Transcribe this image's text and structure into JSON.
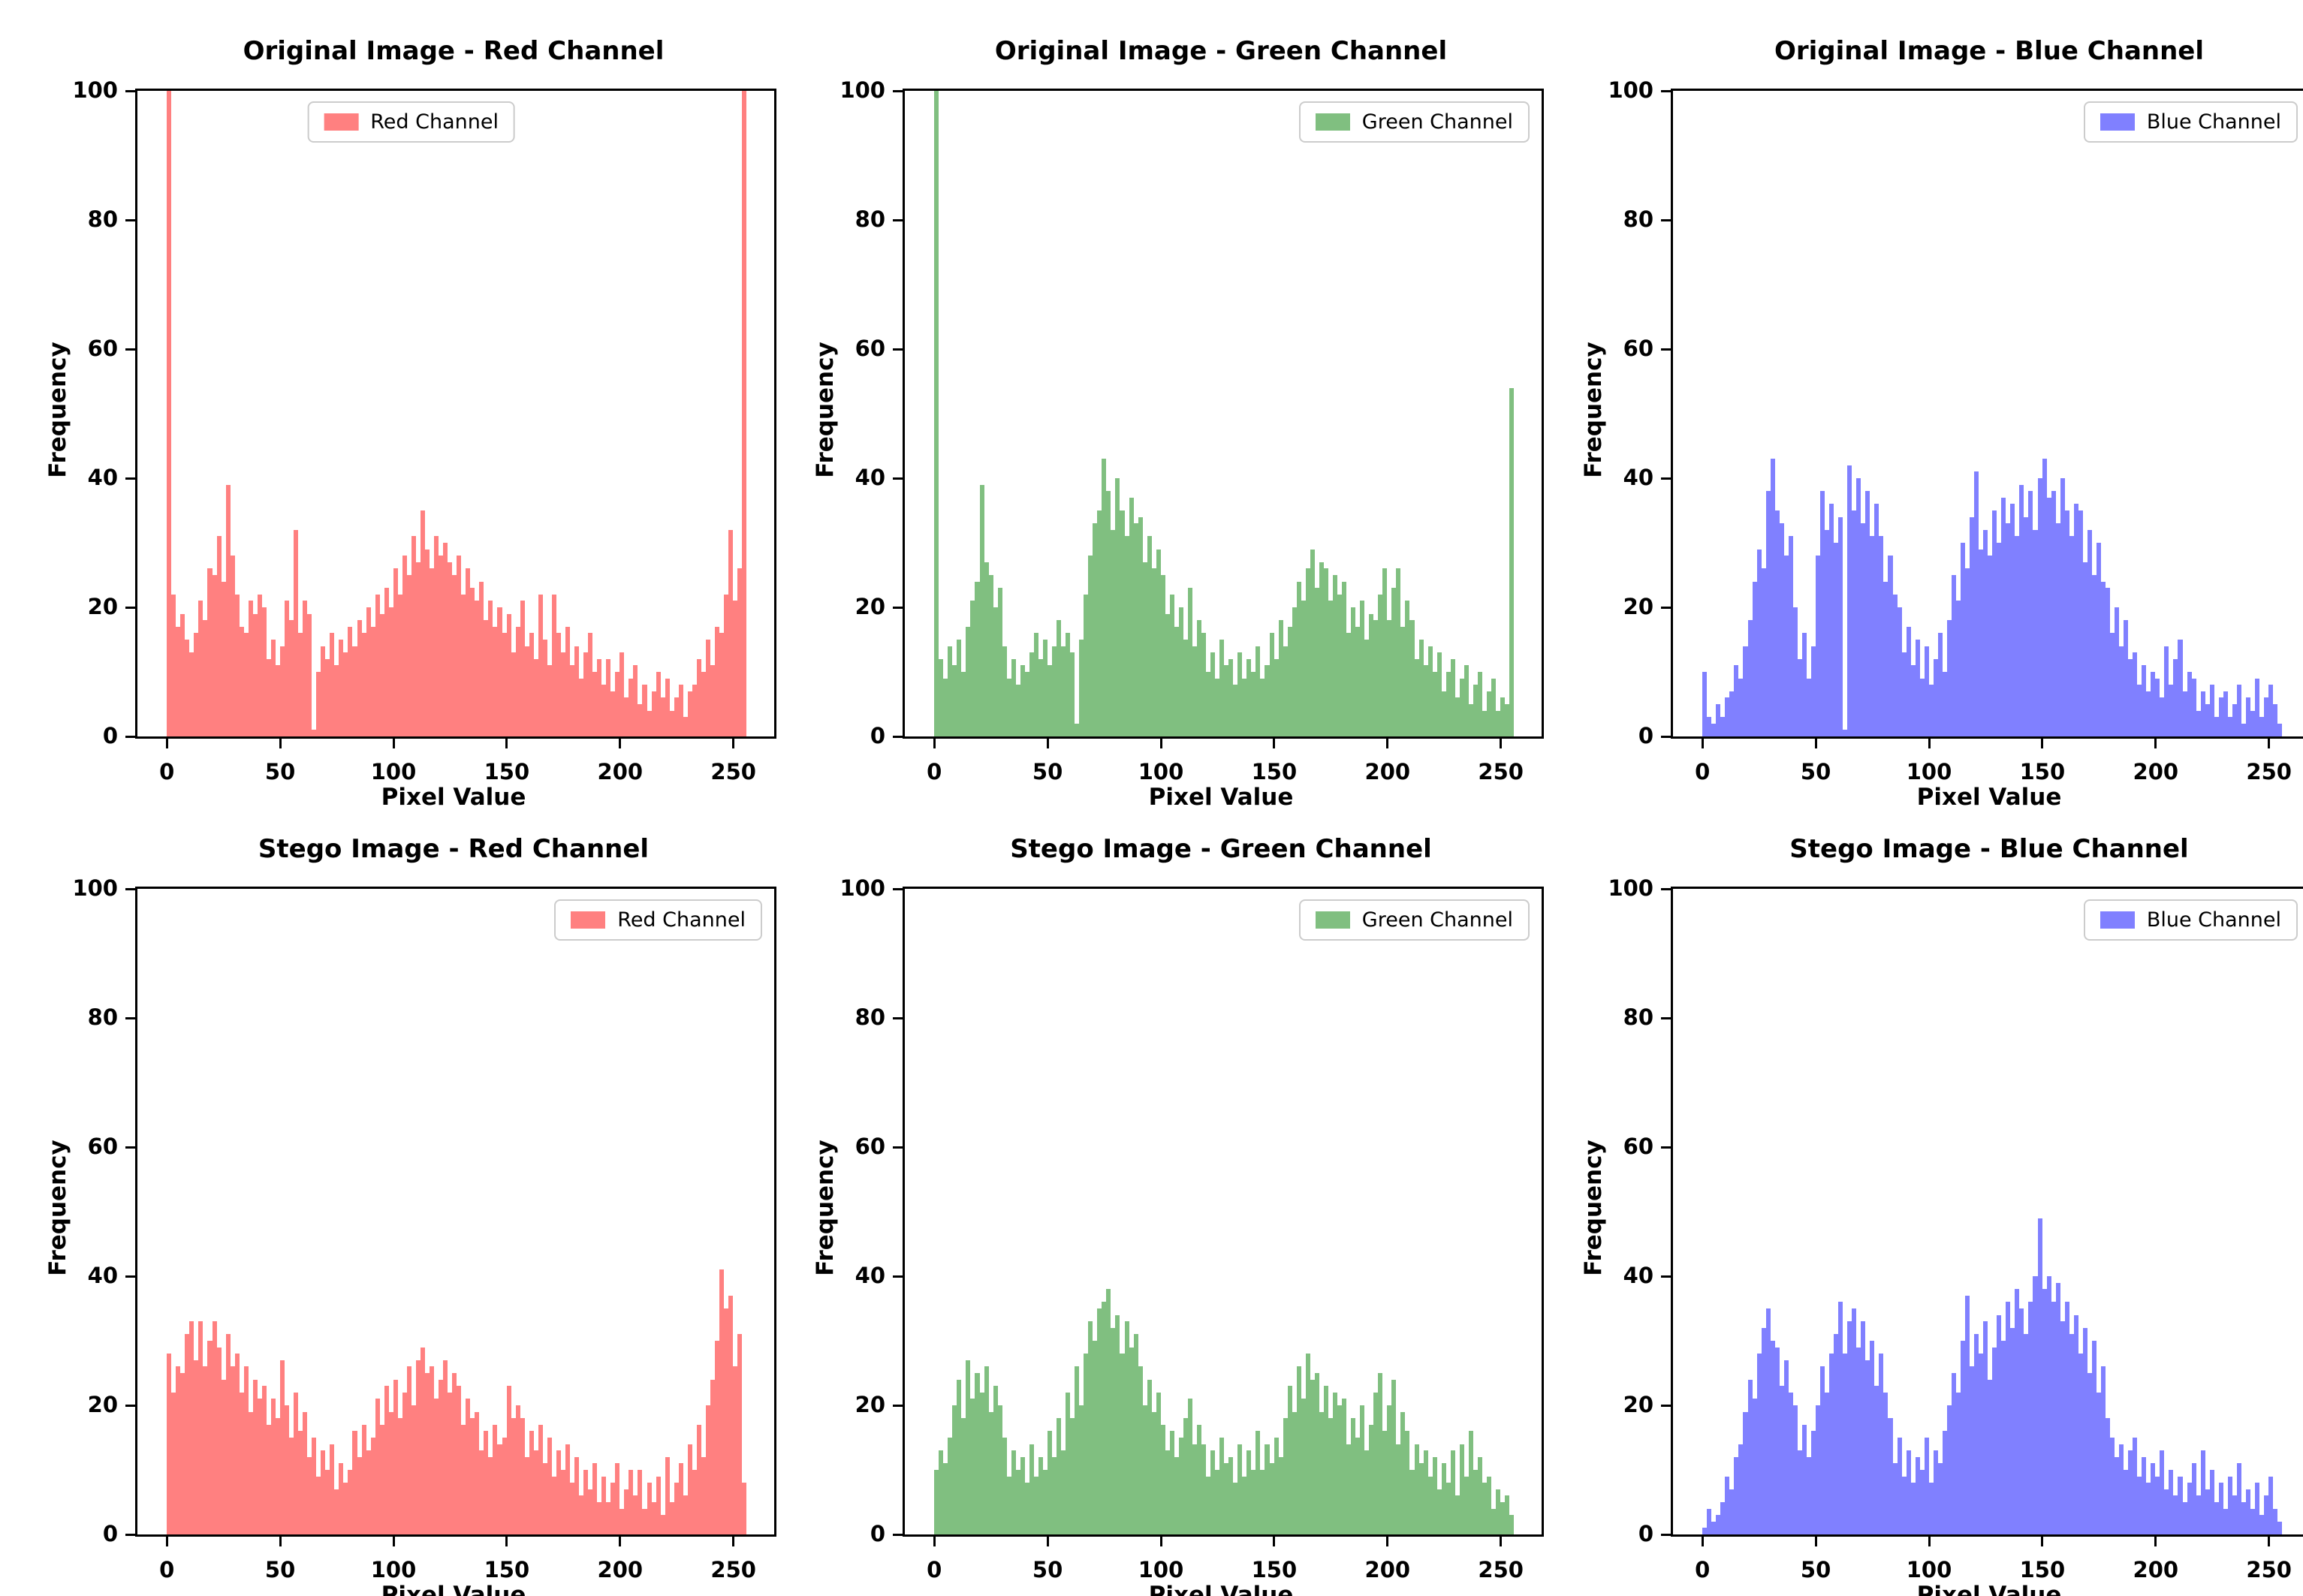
{
  "figure": {
    "background": "#ffffff"
  },
  "chart_data": [
    {
      "type": "bar",
      "subtype": "histogram",
      "title": "Original Image - Red Channel",
      "legend_label": "Red Channel",
      "legend_position": "upper-center",
      "color": "#ff8080",
      "xlabel": "Pixel Value",
      "ylabel": "Frequency",
      "x_ticks": [
        0,
        50,
        100,
        150,
        200,
        250
      ],
      "y_ticks": [
        0,
        20,
        40,
        60,
        80,
        100
      ],
      "xlim": [
        -13,
        268
      ],
      "ylim": [
        0,
        100
      ],
      "bin_start": 0,
      "bin_width": 2,
      "clipped_spikes_at": [
        0,
        255
      ],
      "values": [
        115,
        22,
        17,
        19,
        15,
        13,
        16,
        21,
        18,
        26,
        25,
        31,
        24,
        39,
        28,
        22,
        17,
        16,
        21,
        19,
        22,
        20,
        12,
        15,
        11,
        14,
        21,
        18,
        32,
        16,
        21,
        19,
        1,
        10,
        14,
        12,
        16,
        11,
        15,
        13,
        17,
        14,
        18,
        16,
        20,
        17,
        22,
        19,
        23,
        20,
        26,
        22,
        28,
        25,
        31,
        27,
        35,
        29,
        26,
        31,
        28,
        30,
        27,
        25,
        28,
        22,
        26,
        23,
        21,
        24,
        18,
        21,
        17,
        20,
        16,
        19,
        13,
        17,
        21,
        14,
        16,
        12,
        22,
        15,
        11,
        22,
        16,
        13,
        17,
        11,
        14,
        9,
        13,
        16,
        10,
        12,
        8,
        12,
        7,
        10,
        13,
        6,
        9,
        11,
        5,
        8,
        4,
        7,
        10,
        6,
        9,
        4,
        6,
        8,
        3,
        7,
        8,
        12,
        10,
        15,
        11,
        17,
        16,
        22,
        32,
        21,
        26,
        115
      ]
    },
    {
      "type": "bar",
      "subtype": "histogram",
      "title": "Original Image - Green Channel",
      "legend_label": "Green Channel",
      "legend_position": "upper-right",
      "color": "#80bf80",
      "xlabel": "Pixel Value",
      "ylabel": "Frequency",
      "x_ticks": [
        0,
        50,
        100,
        150,
        200,
        250
      ],
      "y_ticks": [
        0,
        20,
        40,
        60,
        80,
        100
      ],
      "xlim": [
        -13,
        268
      ],
      "ylim": [
        0,
        100
      ],
      "bin_start": 0,
      "bin_width": 2,
      "clipped_spikes_at": [
        0
      ],
      "values": [
        115,
        12,
        9,
        14,
        11,
        15,
        10,
        17,
        21,
        24,
        39,
        27,
        25,
        20,
        23,
        14,
        9,
        12,
        8,
        11,
        10,
        13,
        16,
        12,
        15,
        11,
        14,
        18,
        14,
        16,
        13,
        2,
        15,
        22,
        28,
        33,
        35,
        43,
        38,
        32,
        40,
        35,
        31,
        37,
        33,
        34,
        27,
        31,
        26,
        29,
        25,
        19,
        22,
        17,
        20,
        15,
        23,
        14,
        18,
        16,
        10,
        13,
        9,
        15,
        11,
        12,
        8,
        13,
        9,
        12,
        10,
        14,
        9,
        11,
        16,
        12,
        18,
        14,
        17,
        20,
        24,
        21,
        26,
        29,
        23,
        27,
        26,
        21,
        25,
        22,
        24,
        16,
        20,
        17,
        21,
        15,
        19,
        18,
        22,
        26,
        18,
        23,
        26,
        17,
        21,
        18,
        12,
        15,
        11,
        14,
        10,
        13,
        7,
        10,
        12,
        6,
        9,
        11,
        5,
        8,
        10,
        4,
        7,
        9,
        4,
        6,
        5,
        54
      ]
    },
    {
      "type": "bar",
      "subtype": "histogram",
      "title": "Original Image - Blue Channel",
      "legend_label": "Blue Channel",
      "legend_position": "upper-right",
      "color": "#8080ff",
      "xlabel": "Pixel Value",
      "ylabel": "Frequency",
      "x_ticks": [
        0,
        50,
        100,
        150,
        200,
        250
      ],
      "y_ticks": [
        0,
        20,
        40,
        60,
        80,
        100
      ],
      "xlim": [
        -13,
        268
      ],
      "ylim": [
        0,
        100
      ],
      "bin_start": 0,
      "bin_width": 2,
      "clipped_spikes_at": [],
      "values": [
        10,
        3,
        2,
        5,
        3,
        6,
        7,
        11,
        9,
        14,
        18,
        24,
        29,
        26,
        38,
        43,
        35,
        33,
        28,
        31,
        20,
        12,
        16,
        9,
        14,
        28,
        38,
        32,
        36,
        30,
        34,
        1,
        42,
        35,
        40,
        33,
        38,
        31,
        36,
        31,
        24,
        28,
        22,
        20,
        13,
        17,
        11,
        15,
        9,
        14,
        8,
        12,
        16,
        10,
        18,
        25,
        21,
        30,
        26,
        34,
        41,
        29,
        32,
        28,
        35,
        30,
        37,
        33,
        36,
        31,
        39,
        34,
        38,
        32,
        40,
        43,
        37,
        38,
        33,
        40,
        35,
        31,
        36,
        35,
        27,
        32,
        25,
        30,
        24,
        23,
        16,
        20,
        14,
        18,
        12,
        13,
        8,
        11,
        7,
        10,
        9,
        6,
        14,
        8,
        12,
        15,
        7,
        10,
        9,
        4,
        7,
        5,
        8,
        3,
        6,
        7,
        3,
        5,
        8,
        2,
        6,
        4,
        9,
        3,
        6,
        8,
        5,
        2
      ]
    },
    {
      "type": "bar",
      "subtype": "histogram",
      "title": "Stego Image - Red Channel",
      "legend_label": "Red Channel",
      "legend_position": "upper-right",
      "color": "#ff8080",
      "xlabel": "Pixel Value",
      "ylabel": "Frequency",
      "x_ticks": [
        0,
        50,
        100,
        150,
        200,
        250
      ],
      "y_ticks": [
        0,
        20,
        40,
        60,
        80,
        100
      ],
      "xlim": [
        -13,
        268
      ],
      "ylim": [
        0,
        100
      ],
      "bin_start": 0,
      "bin_width": 2,
      "clipped_spikes_at": [],
      "values": [
        28,
        22,
        26,
        25,
        31,
        33,
        27,
        33,
        26,
        30,
        33,
        29,
        24,
        31,
        26,
        28,
        22,
        26,
        19,
        24,
        21,
        23,
        17,
        21,
        18,
        27,
        20,
        15,
        22,
        16,
        19,
        12,
        15,
        9,
        13,
        10,
        14,
        7,
        11,
        8,
        10,
        16,
        12,
        17,
        13,
        15,
        21,
        17,
        23,
        19,
        24,
        18,
        22,
        26,
        20,
        27,
        29,
        25,
        26,
        21,
        24,
        27,
        22,
        25,
        23,
        17,
        21,
        18,
        19,
        13,
        16,
        12,
        17,
        14,
        15,
        23,
        18,
        20,
        18,
        12,
        16,
        13,
        17,
        11,
        15,
        9,
        13,
        10,
        14,
        8,
        12,
        6,
        10,
        7,
        11,
        5,
        9,
        5,
        8,
        11,
        4,
        7,
        10,
        6,
        10,
        4,
        8,
        5,
        9,
        3,
        12,
        5,
        8,
        11,
        6,
        14,
        10,
        17,
        12,
        20,
        24,
        30,
        41,
        35,
        37,
        26,
        31,
        8
      ]
    },
    {
      "type": "bar",
      "subtype": "histogram",
      "title": "Stego Image - Green Channel",
      "legend_label": "Green Channel",
      "legend_position": "upper-right",
      "color": "#80bf80",
      "xlabel": "Pixel Value",
      "ylabel": "Frequency",
      "x_ticks": [
        0,
        50,
        100,
        150,
        200,
        250
      ],
      "y_ticks": [
        0,
        20,
        40,
        60,
        80,
        100
      ],
      "xlim": [
        -13,
        268
      ],
      "ylim": [
        0,
        100
      ],
      "bin_start": 0,
      "bin_width": 2,
      "clipped_spikes_at": [],
      "values": [
        10,
        13,
        11,
        15,
        20,
        24,
        18,
        27,
        21,
        25,
        22,
        26,
        19,
        23,
        20,
        15,
        9,
        13,
        10,
        12,
        8,
        14,
        9,
        12,
        10,
        16,
        12,
        18,
        13,
        22,
        18,
        26,
        20,
        28,
        33,
        30,
        35,
        36,
        38,
        32,
        34,
        28,
        33,
        29,
        31,
        26,
        20,
        24,
        19,
        22,
        17,
        13,
        16,
        12,
        15,
        18,
        21,
        14,
        17,
        14,
        9,
        13,
        10,
        15,
        11,
        12,
        8,
        14,
        9,
        13,
        10,
        16,
        10,
        14,
        11,
        15,
        12,
        18,
        23,
        19,
        26,
        21,
        28,
        24,
        25,
        19,
        23,
        18,
        22,
        20,
        21,
        14,
        18,
        15,
        20,
        13,
        17,
        22,
        25,
        16,
        20,
        24,
        14,
        19,
        16,
        10,
        14,
        11,
        13,
        9,
        12,
        7,
        11,
        8,
        13,
        6,
        14,
        9,
        16,
        10,
        12,
        8,
        9,
        4,
        7,
        5,
        6,
        3
      ]
    },
    {
      "type": "bar",
      "subtype": "histogram",
      "title": "Stego Image - Blue Channel",
      "legend_label": "Blue Channel",
      "legend_position": "upper-right",
      "color": "#8080ff",
      "xlabel": "Pixel Value",
      "ylabel": "Frequency",
      "x_ticks": [
        0,
        50,
        100,
        150,
        200,
        250
      ],
      "y_ticks": [
        0,
        20,
        40,
        60,
        80,
        100
      ],
      "xlim": [
        -13,
        268
      ],
      "ylim": [
        0,
        100
      ],
      "bin_start": 0,
      "bin_width": 2,
      "clipped_spikes_at": [],
      "values": [
        1,
        4,
        2,
        3,
        5,
        9,
        7,
        12,
        14,
        19,
        24,
        21,
        28,
        32,
        35,
        30,
        29,
        23,
        27,
        22,
        20,
        13,
        17,
        12,
        16,
        20,
        26,
        22,
        28,
        31,
        36,
        28,
        33,
        35,
        29,
        33,
        27,
        30,
        23,
        28,
        22,
        18,
        11,
        15,
        9,
        13,
        8,
        12,
        10,
        15,
        8,
        13,
        11,
        16,
        20,
        25,
        22,
        30,
        37,
        26,
        31,
        28,
        33,
        24,
        29,
        34,
        30,
        36,
        32,
        38,
        35,
        31,
        36,
        40,
        49,
        38,
        40,
        36,
        39,
        33,
        36,
        31,
        34,
        28,
        32,
        25,
        30,
        22,
        26,
        18,
        15,
        12,
        14,
        10,
        13,
        15,
        9,
        12,
        8,
        11,
        9,
        13,
        7,
        10,
        6,
        9,
        5,
        8,
        11,
        6,
        13,
        7,
        10,
        5,
        8,
        4,
        9,
        6,
        11,
        5,
        7,
        4,
        8,
        3,
        6,
        9,
        4,
        2
      ]
    }
  ]
}
